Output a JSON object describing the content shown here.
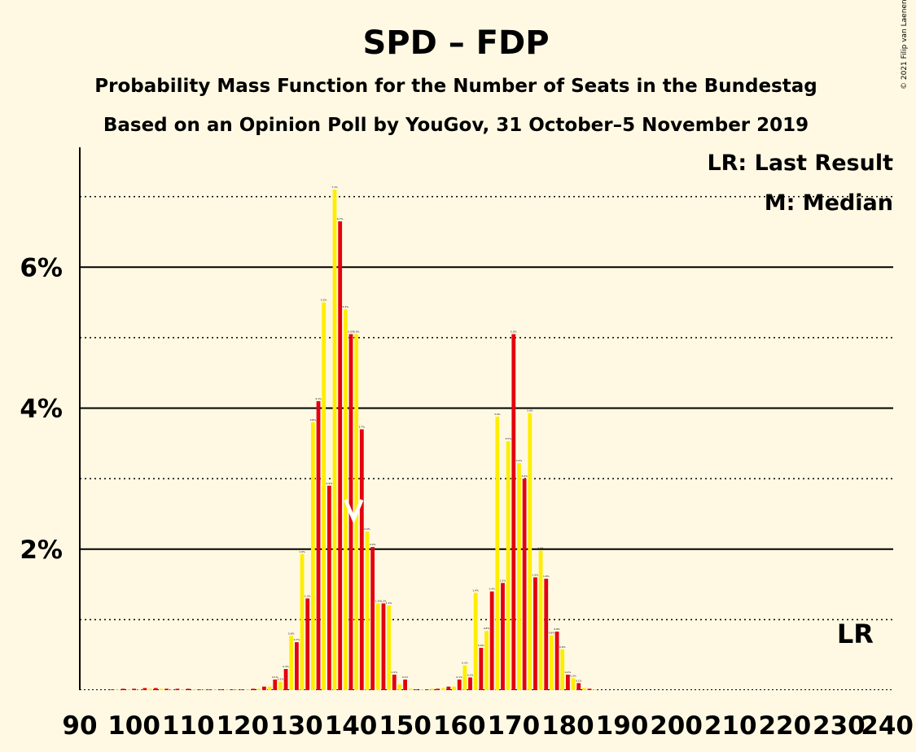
{
  "chart_data": {
    "type": "bar",
    "title": "SPD – FDP",
    "subtitle_1": "Probability Mass Function for the Number of Seats in the Bundestag",
    "subtitle_2": "Based on an Opinion Poll by YouGov, 31 October–5 November 2019",
    "copyright": "© 2021 Filip van Laenen",
    "legend": {
      "last_result": "LR: Last Result",
      "median": "M: Median",
      "placement": "top-right"
    },
    "xlim": [
      90,
      240
    ],
    "ylim": [
      0,
      7.7
    ],
    "x_ticks": [
      "90",
      "100",
      "110",
      "120",
      "130",
      "140",
      "150",
      "160",
      "170",
      "180",
      "190",
      "200",
      "210",
      "220",
      "230",
      "240"
    ],
    "y_ticks": [
      {
        "value": 2,
        "label": "2%"
      },
      {
        "value": 4,
        "label": "4%"
      },
      {
        "value": 6,
        "label": "6%"
      }
    ],
    "solid_gridlines": [
      2,
      4,
      6
    ],
    "dotted_gridlines": [
      1,
      3,
      5,
      7
    ],
    "last_result": {
      "seats": 233,
      "label": "LR"
    },
    "median": {
      "seats": 141,
      "label": "M"
    },
    "colors": {
      "even": "#E3000F",
      "odd": "#FFED00",
      "background": "#FFF9E3"
    },
    "seats": [
      96,
      97,
      98,
      99,
      100,
      101,
      102,
      103,
      104,
      105,
      106,
      107,
      108,
      109,
      110,
      111,
      112,
      113,
      114,
      115,
      116,
      117,
      118,
      119,
      120,
      121,
      122,
      123,
      124,
      125,
      126,
      127,
      128,
      129,
      130,
      131,
      132,
      133,
      134,
      135,
      136,
      137,
      138,
      139,
      140,
      141,
      142,
      143,
      144,
      145,
      146,
      147,
      148,
      149,
      150,
      151,
      152,
      153,
      154,
      155,
      156,
      157,
      158,
      159,
      160,
      161,
      162,
      163,
      164,
      165,
      166,
      167,
      168,
      169,
      170,
      171,
      172,
      173,
      174,
      175,
      176,
      177,
      178,
      179,
      180,
      181,
      182,
      183,
      184,
      185
    ],
    "values": [
      0.01,
      0.01,
      0.02,
      0.01,
      0.02,
      0.01,
      0.03,
      0.02,
      0.03,
      0.02,
      0.02,
      0.01,
      0.02,
      0.01,
      0.02,
      0.01,
      0.01,
      0.01,
      0.01,
      0.01,
      0.01,
      0.01,
      0.01,
      0.01,
      0.01,
      0.01,
      0.02,
      0.02,
      0.05,
      0.05,
      0.15,
      0.12,
      0.3,
      0.77,
      0.68,
      1.93,
      1.3,
      3.8,
      4.1,
      5.5,
      2.9,
      7.1,
      6.65,
      5.4,
      5.05,
      5.05,
      3.7,
      2.25,
      2.03,
      1.23,
      1.23,
      1.2,
      0.22,
      0.08,
      0.15,
      0.02,
      0.01,
      0.01,
      0.01,
      0.02,
      0.02,
      0.03,
      0.05,
      0.05,
      0.15,
      0.35,
      0.18,
      1.38,
      0.6,
      0.84,
      1.4,
      3.88,
      1.52,
      3.53,
      5.05,
      3.22,
      3.0,
      3.93,
      1.6,
      1.98,
      1.58,
      0.78,
      0.83,
      0.58,
      0.22,
      0.17,
      0.1,
      0.03,
      0.02,
      0.01
    ],
    "value_labels": [
      "",
      "",
      "",
      "",
      "",
      "",
      "",
      "",
      "",
      "",
      "",
      "",
      "",
      "",
      "",
      "",
      "",
      "",
      "",
      "",
      "",
      "",
      "",
      "",
      "",
      "",
      "",
      "",
      "",
      "",
      "0.1%",
      "0.1%",
      "0.3%",
      "0.8%",
      "0.7%",
      "1.9%",
      "1.3%",
      "3.8%",
      "4.1%",
      "5.5%",
      "2.9%",
      "7.1%",
      "6.7%",
      "5.4%",
      "5.0%",
      "5.0%",
      "3.7%",
      "2.2%",
      "2.0%",
      "1.2%",
      "1.2%",
      "1.2%",
      "0.2%",
      "",
      "0.1%",
      "",
      "",
      "",
      "",
      "",
      "",
      "",
      "",
      "",
      "0.1%",
      "0.3%",
      "0.2%",
      "1.4%",
      "0.6%",
      "0.8%",
      "1.4%",
      "3.9%",
      "1.5%",
      "3.5%",
      "5.0%",
      "3.2%",
      "3.0%",
      "3.9%",
      "1.6%",
      "2.0%",
      "1.6%",
      "0.8%",
      "0.8%",
      "0.6%",
      "0.2%",
      "0.2%",
      "0.1%",
      "",
      "",
      ""
    ]
  }
}
